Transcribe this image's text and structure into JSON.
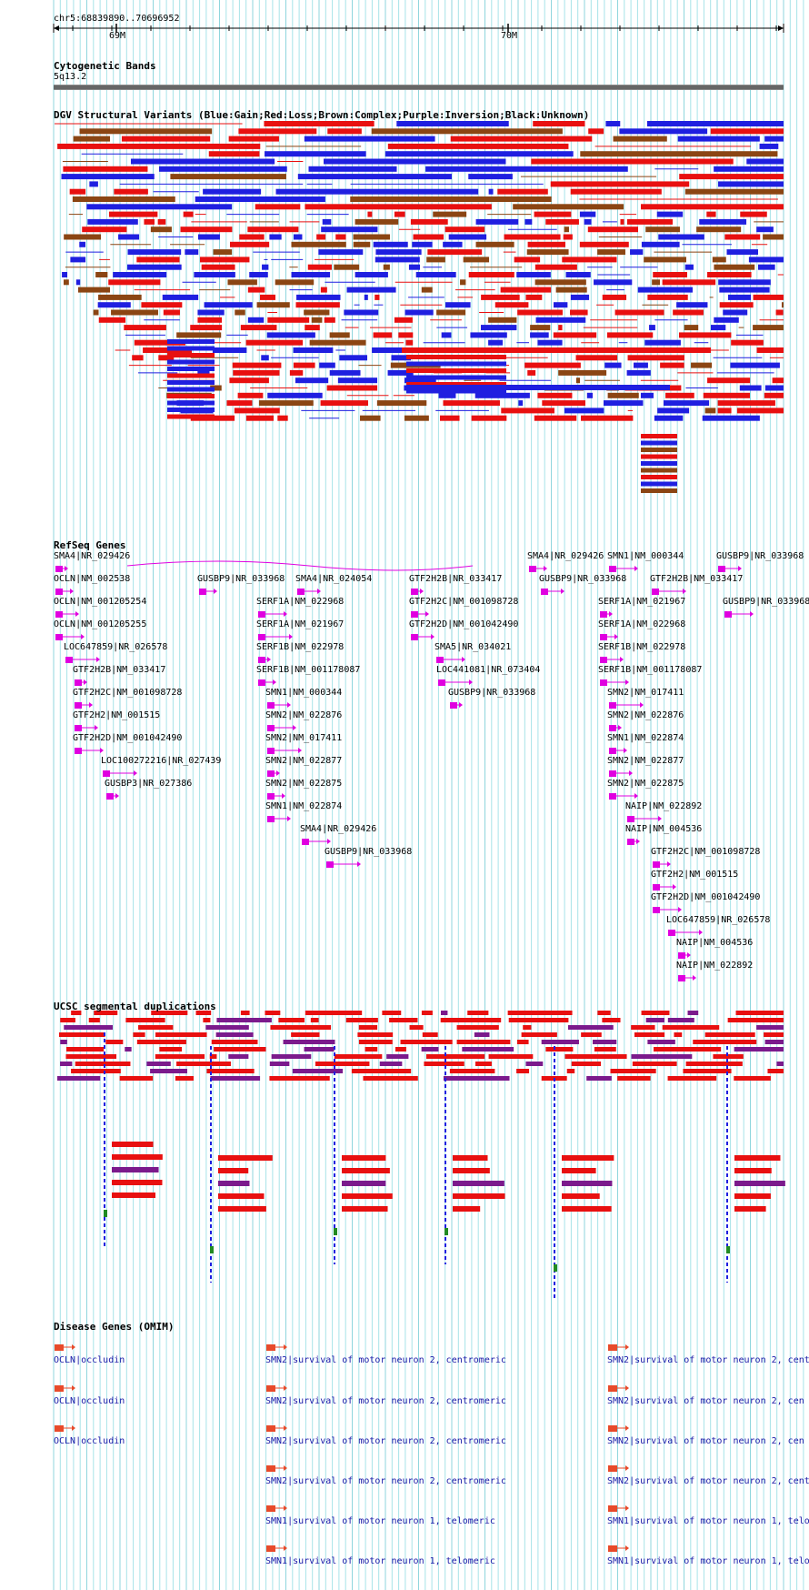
{
  "header": {
    "position": "chr5:68839890..70696952",
    "ticks": [
      "69M",
      "70M"
    ]
  },
  "tracks": {
    "cytoband": {
      "title": "Cytogenetic Bands",
      "band": "5q13.2"
    },
    "dgv": {
      "title": "DGV Structural Variants (Blue:Gain;Red:Loss;Brown:Complex;Purple:Inversion;Black:Unknown)"
    },
    "refseq": {
      "title": "RefSeq Genes"
    },
    "segdup": {
      "title": "UCSC segmental duplications"
    },
    "omim": {
      "title": "Disease Genes (OMIM)"
    }
  },
  "refseq_genes": [
    "SMA4|NR_029426",
    "OCLN|NM_002538",
    "OCLN|NM_001205254",
    "OCLN|NM_001205255",
    "LOC647859|NR_026578",
    "GTF2H2B|NM_033417",
    "GTF2H2C|NM_001098728",
    "GTF2H2|NM_001515",
    "GTF2H2D|NM_001042490",
    "LOC100272216|NR_027439",
    "GUSBP3|NR_027386",
    "GUSBP9|NR_033968",
    "SMA4|NR_024054",
    "SERF1A|NM_022968",
    "SERF1A|NM_021967",
    "SERF1B|NM_022978",
    "SERF1B|NM_001178087",
    "SMN1|NM_000344",
    "SMN2|NM_022876",
    "SMN2|NM_017411",
    "SMN2|NM_022877",
    "SMN2|NM_022875",
    "SMN1|NM_022874",
    "SMA4|NR_029426",
    "GUSBP9|NR_033968",
    "GTF2H2B|NR_033417",
    "GTF2H2C|NM_001098728",
    "GTF2H2D|NM_001042490",
    "SMA5|NR_034021",
    "LOC441081|NR_073404",
    "GUSBP9|NR_033968",
    "SMA4|NR_029426",
    "GUSBP9|NR_033968",
    "SMN1|NM_000344",
    "GTF2H2B|NM_033417",
    "SERF1A|NM_021967",
    "SERF1A|NM_022968",
    "SERF1B|NM_022978",
    "SERF1B|NM_001178087",
    "SMN2|NM_017411",
    "SMN2|NM_022876",
    "SMN1|NM_022874",
    "SMN2|NM_022877",
    "SMN2|NM_022875",
    "NAIP|NM_022892",
    "NAIP|NM_004536",
    "GTF2H2C|NM_001098728",
    "GTF2H2|NM_001515",
    "GTF2H2D|NM_001042490",
    "LOC647859|NR_026578",
    "NAIP|NM_004536",
    "NAIP|NM_022892",
    "GUSBP9|NR_033968",
    "GUSBP9|NR_033968"
  ],
  "omim_genes": [
    "OCLN|occludin",
    "OCLN|occludin",
    "OCLN|occludin",
    "SMN2|survival of motor neuron 2, centromeric",
    "SMN2|survival of motor neuron 2, centromeric",
    "SMN2|survival of motor neuron 2, centromeric",
    "SMN2|survival of motor neuron 2, centromeric",
    "SMN1|survival of motor neuron 1, telomeric",
    "SMN1|survival of motor neuron 1, telomeric",
    "SMN2|survival of motor neuron 2, cent",
    "SMN2|survival of motor neuron 2, cen",
    "SMN2|survival of motor neuron 2, cen",
    "SMN2|survival of motor neuron 2, cent",
    "SMN1|survival of motor neuron 1, telo",
    "SMN1|survival of motor neuron 1, telo"
  ],
  "colors": {
    "gain": "#1f1fe0",
    "loss": "#e81010",
    "complex": "#8b4513",
    "inversion": "#7b1a8c",
    "gene": "#e000e0",
    "omim_glyph": "#e84a2a",
    "omim_text": "#1a1aa8",
    "grid": "#a7e3e8",
    "segdup_red": "#e81010",
    "segdup_purple": "#7b1a8c",
    "segdup_green": "#228b22"
  }
}
